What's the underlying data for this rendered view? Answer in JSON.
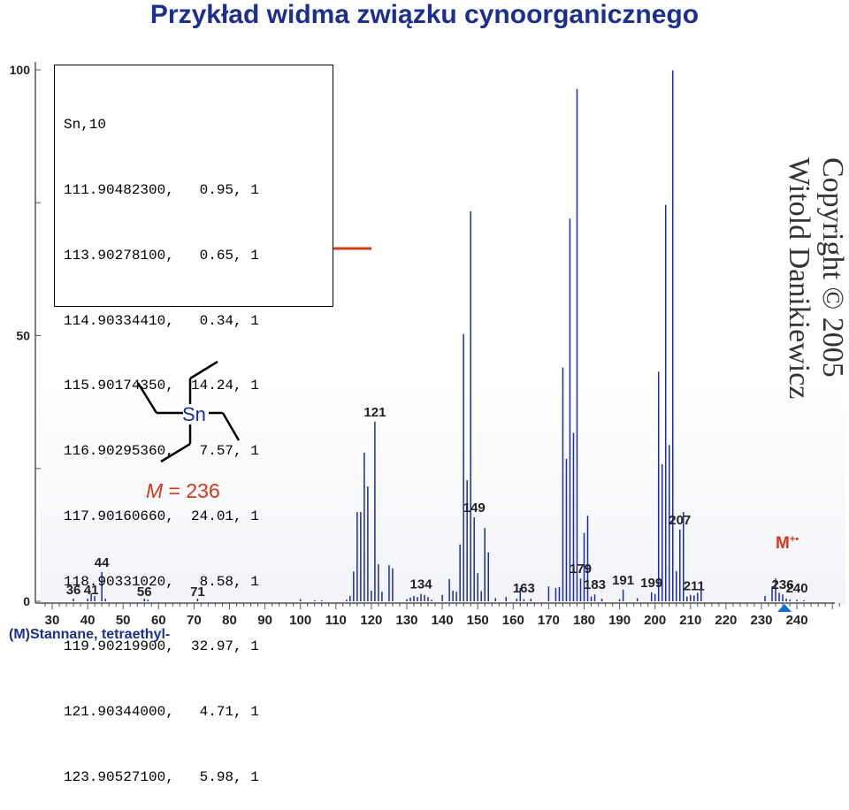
{
  "title": "Przykład widma związku cynoorganicznego",
  "isotope_table": {
    "header": "Sn,10",
    "rows": [
      "111.90482300,   0.95, 1",
      "113.90278100,   0.65, 1",
      "114.90334410,   0.34, 1",
      "115.90174350,  14.24, 1",
      "116.90295360,   7.57, 1",
      "117.90160660,  24.01, 1",
      "118.90331020,   8.58, 1",
      "119.90219900,  32.97, 1",
      "121.90344000,   4.71, 1",
      "123.90527100,   5.98, 1"
    ]
  },
  "copyright": {
    "line1": "Copyright © 2005",
    "line2": "Witold Danikiewicz"
  },
  "molecule": {
    "atom_label": "Sn",
    "mass_symbol": "M",
    "mass_text": " = 236"
  },
  "molecular_ion": {
    "label": "M",
    "superscript": "+•"
  },
  "compound_name": "(M)Stannane, tetraethyl-",
  "colors": {
    "title": "#1c2f8f",
    "bars": "#1a2aa8",
    "accent": "#d4381a"
  },
  "chart_data": {
    "type": "bar",
    "xlim": [
      26,
      254
    ],
    "ylim": [
      0,
      100
    ],
    "x_ticks": [
      30,
      40,
      50,
      60,
      70,
      80,
      90,
      100,
      110,
      120,
      130,
      140,
      150,
      160,
      170,
      180,
      190,
      200,
      210,
      220,
      230,
      240
    ],
    "y_ticks": [
      0,
      50,
      100
    ],
    "grid": false,
    "marker_x": 236,
    "peak_labels": [
      {
        "x": 36,
        "label": "36"
      },
      {
        "x": 41,
        "label": "41"
      },
      {
        "x": 44,
        "label": "44"
      },
      {
        "x": 56,
        "label": "56"
      },
      {
        "x": 71,
        "label": "71"
      },
      {
        "x": 121,
        "label": "121"
      },
      {
        "x": 134,
        "label": "134"
      },
      {
        "x": 149,
        "label": "149"
      },
      {
        "x": 163,
        "label": "163"
      },
      {
        "x": 179,
        "label": "179"
      },
      {
        "x": 183,
        "label": "183"
      },
      {
        "x": 191,
        "label": "191"
      },
      {
        "x": 199,
        "label": "199"
      },
      {
        "x": 207,
        "label": "207"
      },
      {
        "x": 211,
        "label": "211"
      },
      {
        "x": 236,
        "label": "236"
      },
      {
        "x": 240,
        "label": "240"
      }
    ],
    "x": [
      36,
      40,
      41,
      42,
      44,
      45,
      56,
      57,
      71,
      100,
      104,
      106,
      113,
      114,
      115,
      116,
      117,
      118,
      119,
      120,
      121,
      122,
      123,
      125,
      126,
      130,
      131,
      132,
      133,
      134,
      135,
      136,
      137,
      140,
      142,
      143,
      144,
      145,
      146,
      147,
      148,
      149,
      150,
      151,
      152,
      153,
      155,
      158,
      161,
      162,
      163,
      165,
      170,
      172,
      173,
      174,
      175,
      176,
      177,
      178,
      179,
      180,
      181,
      182,
      183,
      185,
      190,
      191,
      195,
      199,
      200,
      201,
      202,
      203,
      204,
      205,
      206,
      207,
      208,
      209,
      210,
      211,
      212,
      213,
      231,
      233,
      234,
      235,
      236,
      237,
      238,
      240,
      242
    ],
    "values": [
      0.5,
      0.5,
      1.5,
      1.0,
      5.5,
      0.5,
      0.5,
      0.3,
      0.5,
      0.4,
      0.2,
      0.2,
      0.3,
      1.0,
      5.6,
      16.8,
      16.8,
      28.0,
      21.6,
      2.0,
      33.8,
      7.0,
      1.8,
      6.8,
      6.2,
      0.4,
      0.7,
      1.0,
      0.8,
      1.4,
      1.2,
      0.8,
      0.3,
      1.2,
      4.2,
      2.0,
      1.8,
      10.7,
      50.3,
      22.8,
      73.4,
      15.8,
      5.3,
      1.9,
      13.8,
      9.2,
      0.6,
      0.8,
      0.5,
      2.5,
      0.4,
      0.5,
      2.8,
      2.5,
      2.7,
      44.0,
      26.8,
      72.0,
      31.7,
      96.4,
      4.3,
      12.9,
      16.1,
      0.9,
      1.3,
      0.5,
      0.4,
      2.2,
      0.6,
      1.7,
      1.4,
      43.2,
      25.8,
      74.6,
      29.4,
      99.9,
      5.7,
      13.5,
      16.8,
      0.9,
      1.2,
      1.1,
      1.6,
      3.2,
      1.0,
      2.8,
      4.3,
      1.6,
      1.3,
      0.5,
      0.3,
      0.3,
      0.2
    ]
  }
}
